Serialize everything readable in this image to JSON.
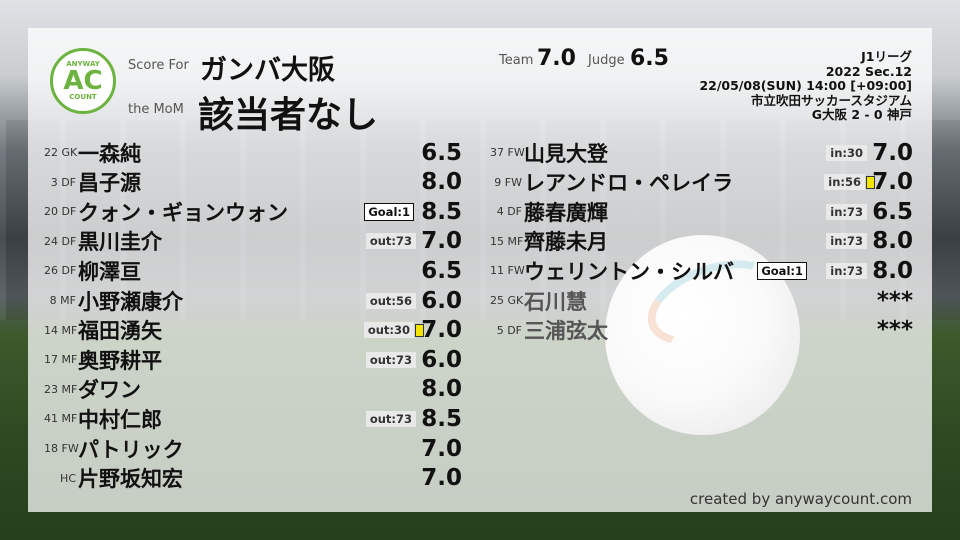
{
  "header": {
    "logo_top": "ANYWAY",
    "logo_mid": "AC",
    "logo_bottom": "COUNT",
    "score_for_label": "Score For",
    "team": "ガンバ大阪",
    "mom_label": "the MoM",
    "mom": "該当者なし",
    "team_label": "Team",
    "team_score": "7.0",
    "judge_label": "Judge",
    "judge_score": "6.5"
  },
  "match": {
    "league": "J1リーグ",
    "section": "2022 Sec.12",
    "datetime": "22/05/08(SUN) 14:00 [+09:00]",
    "venue": "市立吹田サッカースタジアム",
    "result": "G大阪 2 - 0 神戸"
  },
  "left_players": [
    {
      "num": "22 GK",
      "name": "一森純",
      "score": "6.5"
    },
    {
      "num": "3 DF",
      "name": "昌子源",
      "score": "8.0"
    },
    {
      "num": "20 DF",
      "name": "クォン・ギョンウォン",
      "score": "8.5",
      "goal": "Goal:1"
    },
    {
      "num": "24 DF",
      "name": "黒川圭介",
      "score": "7.0",
      "sub": "out:73"
    },
    {
      "num": "26 DF",
      "name": "柳澤亘",
      "score": "6.5"
    },
    {
      "num": "8 MF",
      "name": "小野瀬康介",
      "score": "6.0",
      "sub": "out:56"
    },
    {
      "num": "14 MF",
      "name": "福田湧矢",
      "score": "7.0",
      "sub": "out:30",
      "yellow": true
    },
    {
      "num": "17 MF",
      "name": "奥野耕平",
      "score": "6.0",
      "sub": "out:73"
    },
    {
      "num": "23 MF",
      "name": "ダワン",
      "score": "8.0"
    },
    {
      "num": "41 MF",
      "name": "中村仁郎",
      "score": "8.5",
      "sub": "out:73"
    },
    {
      "num": "18 FW",
      "name": "パトリック",
      "score": "7.0"
    },
    {
      "num": "HC",
      "name": "片野坂知宏",
      "score": "7.0"
    }
  ],
  "right_players": [
    {
      "num": "37 FW",
      "name": "山見大登",
      "score": "7.0",
      "sub": "in:30"
    },
    {
      "num": "9 FW",
      "name": "レアンドロ・ペレイラ",
      "score": "7.0",
      "sub": "in:56",
      "yellow": true
    },
    {
      "num": "4 DF",
      "name": "藤春廣輝",
      "score": "6.5",
      "sub": "in:73"
    },
    {
      "num": "15 MF",
      "name": "齊藤未月",
      "score": "8.0",
      "sub": "in:73"
    },
    {
      "num": "11 FW",
      "name": "ウェリントン・シルバ",
      "score": "8.0",
      "sub": "in:73",
      "goal": "Goal:1"
    },
    {
      "num": "25 GK",
      "name": "石川慧",
      "score": "***",
      "dim": true
    },
    {
      "num": "5 DF",
      "name": "三浦弦太",
      "score": "***",
      "dim": true
    }
  ],
  "footer": {
    "credit": "created by anywaycount.com"
  },
  "colors": {
    "brand_green": "#6cb33f",
    "yellow_card": "#f2e600"
  }
}
